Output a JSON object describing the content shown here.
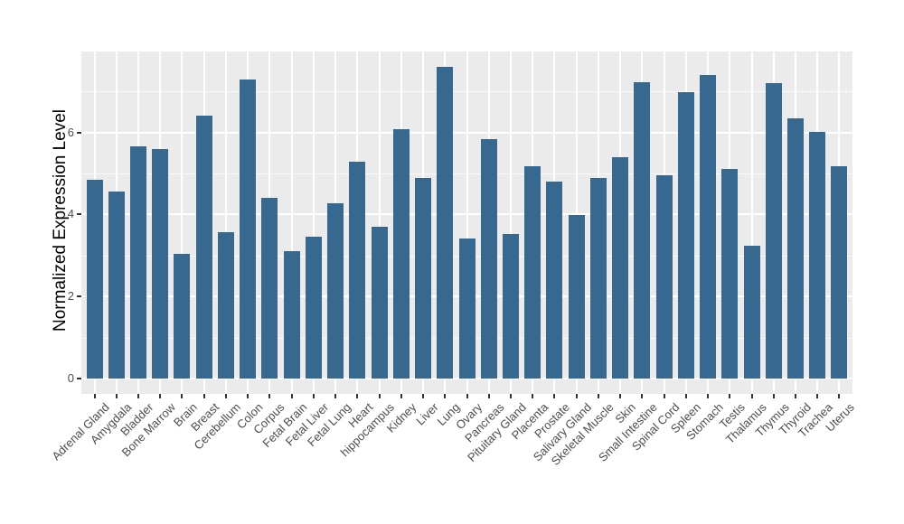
{
  "chart_data": {
    "type": "bar",
    "title": "",
    "xlabel": "",
    "ylabel": "Normalized Expression Level",
    "categories": [
      "Adrenal Gland",
      "Amygdala",
      "Bladder",
      "Bone Marrow",
      "Brain",
      "Breast",
      "Cerebellum",
      "Colon",
      "Corpus",
      "Fetal Brain",
      "Fetal Liver",
      "Fetal Lung",
      "Heart",
      "hippocampus",
      "Kidney",
      "Liver",
      "Lung",
      "Ovary",
      "Pancreas",
      "Pituitary Gland",
      "Placenta",
      "Prostate",
      "Salivary Gland",
      "Skeletal Muscle",
      "Skin",
      "Small Intestine",
      "Spinal Cord",
      "Spleen",
      "Stomach",
      "Testis",
      "Thalamus",
      "Thymus",
      "Thyroid",
      "Trachea",
      "Uterus"
    ],
    "values": [
      4.84,
      4.55,
      5.65,
      5.59,
      3.04,
      6.42,
      3.57,
      7.3,
      4.4,
      3.11,
      3.46,
      4.28,
      5.28,
      3.71,
      6.09,
      4.9,
      7.6,
      3.41,
      5.84,
      3.52,
      5.18,
      4.8,
      3.99,
      4.9,
      5.4,
      7.23,
      4.96,
      6.99,
      7.39,
      5.12,
      3.24,
      7.21,
      6.35,
      6.02,
      5.18
    ],
    "y_ticks": [
      0,
      2,
      4,
      6
    ],
    "major_gridlines": [
      0,
      2,
      4,
      6
    ],
    "minor_gridlines": [
      1,
      3,
      5,
      7
    ],
    "ylim": [
      -0.4,
      7.98
    ],
    "x_label_angle_deg": 45,
    "legend": "none",
    "colors": {
      "bar_fill": "#376890",
      "panel_bg": "#EBEBEB",
      "grid": "#FFFFFF",
      "tick_mark": "#333333",
      "tick_label": "#4D4D4D",
      "axis_title": "#000000",
      "figure_bg": "#FFFFFF"
    }
  }
}
